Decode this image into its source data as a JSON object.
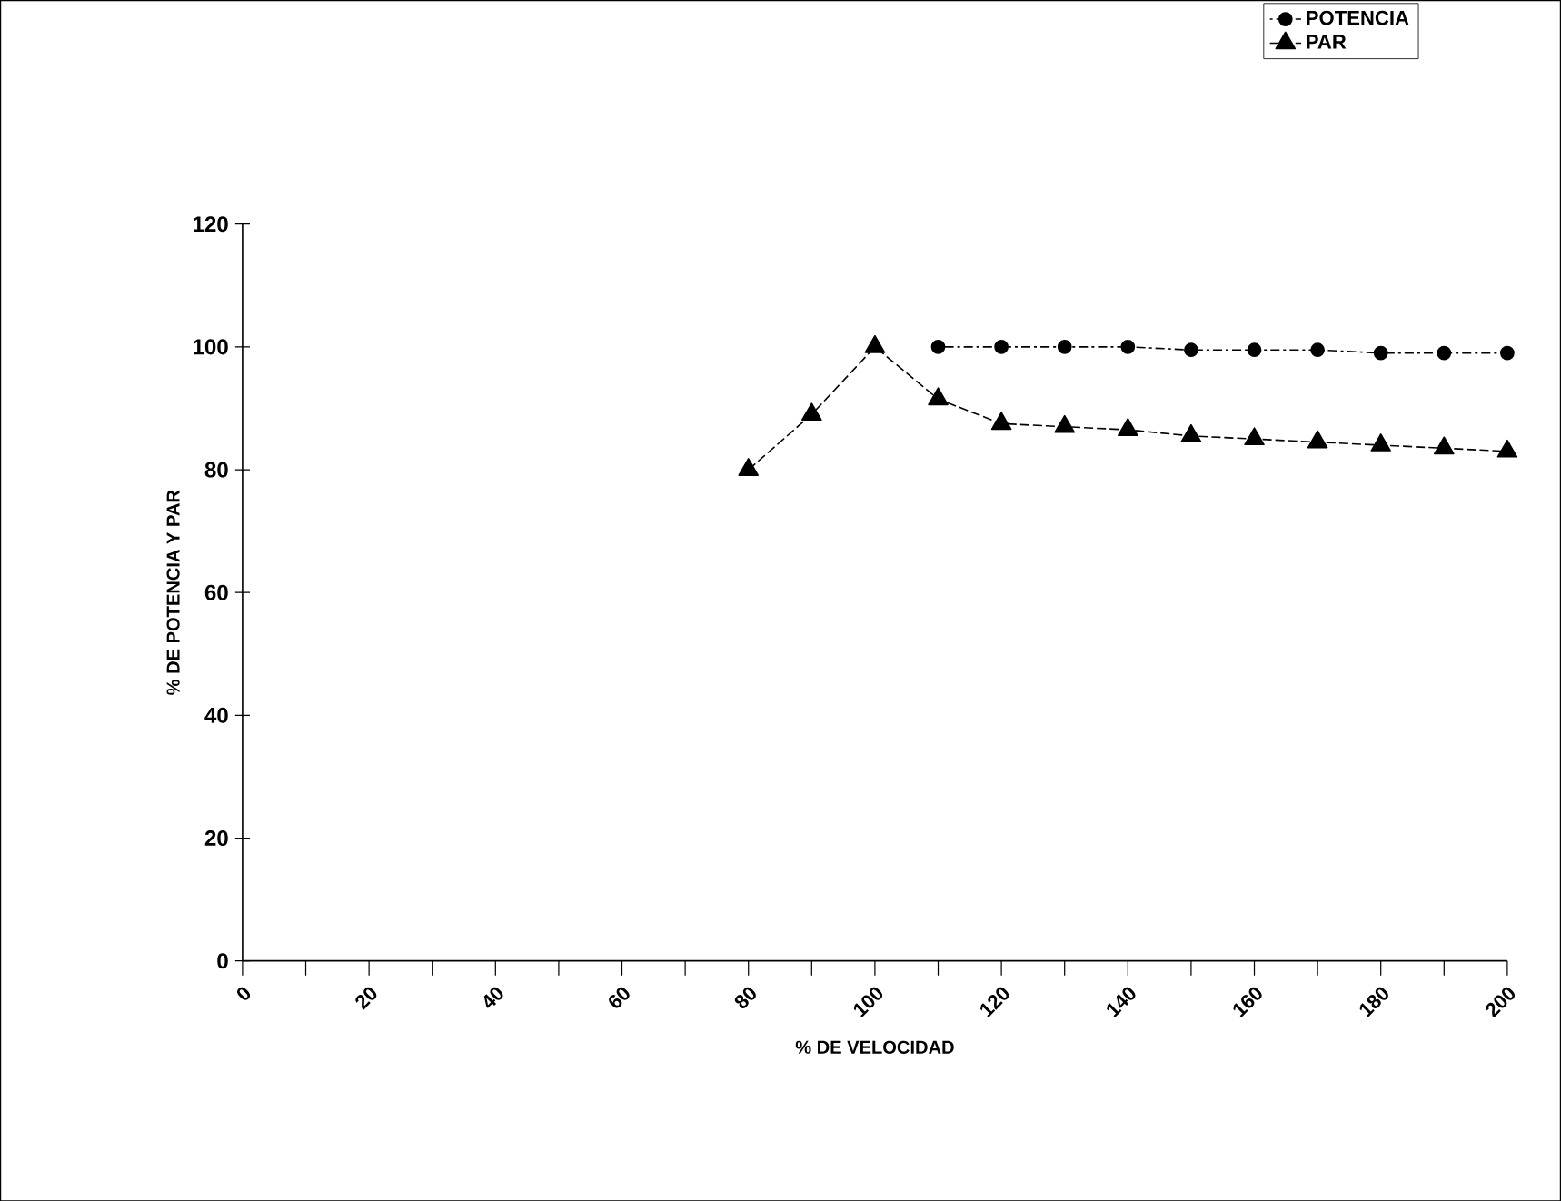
{
  "chart_data": {
    "type": "line",
    "xlabel": "% DE VELOCIDAD",
    "ylabel": "% DE POTENCIA Y PAR",
    "x": [
      80,
      90,
      100,
      110,
      120,
      130,
      140,
      150,
      160,
      170,
      180,
      190,
      200
    ],
    "series": [
      {
        "name": "POTENCIA",
        "color": "#000000",
        "marker": "circle",
        "line_style": "dotted",
        "values": [
          null,
          null,
          null,
          100,
          100,
          100,
          100,
          99.5,
          99.5,
          99.5,
          99,
          99,
          99
        ]
      },
      {
        "name": "PAR",
        "color": "#000000",
        "marker": "triangle",
        "line_style": "dashed",
        "values": [
          80,
          89,
          100,
          91.5,
          87.5,
          87,
          86.5,
          85.5,
          85,
          84.5,
          84,
          83.5,
          83
        ]
      }
    ],
    "xlim": [
      0,
      200
    ],
    "xticks": [
      0,
      {
        "value": 10,
        "label": null
      },
      20,
      {
        "value": 30,
        "label": null
      },
      40,
      {
        "value": 50,
        "label": null
      },
      60,
      {
        "value": 70,
        "label": null
      },
      80,
      {
        "value": 90,
        "label": null
      },
      100,
      {
        "value": 110,
        "label": null
      },
      120,
      {
        "value": 130,
        "label": null
      },
      140,
      {
        "value": 150,
        "label": null
      },
      160,
      {
        "value": 170,
        "label": null
      },
      180,
      {
        "value": 190,
        "label": null
      },
      200
    ],
    "ylim": [
      0,
      120
    ],
    "yticks": [
      0,
      20,
      40,
      60,
      80,
      100,
      120
    ],
    "grid": false,
    "legend": "top right"
  }
}
